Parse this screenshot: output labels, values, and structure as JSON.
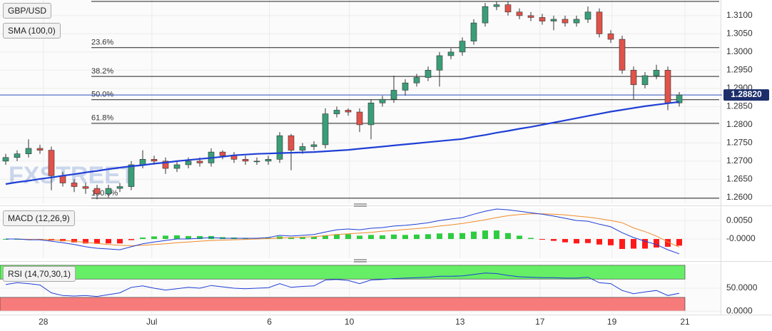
{
  "chart_data": [
    {
      "type": "candlestick",
      "title": "GBP/USD",
      "open": [
        1.27,
        1.271,
        1.272,
        1.2735,
        1.273,
        1.266,
        1.264,
        1.263,
        1.2625,
        1.261,
        1.2625,
        1.263,
        1.269,
        1.2705,
        1.27,
        1.268,
        1.269,
        1.27,
        1.2695,
        1.2725,
        1.2715,
        1.2705,
        1.27,
        1.27,
        1.2705,
        1.277,
        1.273,
        1.274,
        1.2745,
        1.283,
        1.284,
        1.2835,
        1.28,
        1.286,
        1.287,
        1.2895,
        1.2915,
        1.293,
        1.295,
        1.299,
        1.3,
        1.303,
        1.308,
        1.3125,
        1.313,
        1.311,
        1.31,
        1.3095,
        1.3085,
        1.309,
        1.308,
        1.309,
        1.311,
        1.305,
        1.3035,
        1.295,
        1.291,
        1.2935,
        1.295,
        1.286
      ],
      "high": [
        1.272,
        1.273,
        1.276,
        1.2745,
        1.274,
        1.267,
        1.265,
        1.264,
        1.2635,
        1.2635,
        1.264,
        1.27,
        1.273,
        1.2715,
        1.271,
        1.27,
        1.271,
        1.271,
        1.2735,
        1.273,
        1.2725,
        1.2715,
        1.271,
        1.2715,
        1.278,
        1.2775,
        1.275,
        1.2755,
        1.2845,
        1.285,
        1.2845,
        1.2845,
        1.287,
        1.288,
        1.2935,
        1.2925,
        1.294,
        1.296,
        1.3,
        1.301,
        1.304,
        1.309,
        1.3135,
        1.314,
        1.314,
        1.312,
        1.311,
        1.3105,
        1.31,
        1.31,
        1.31,
        1.3125,
        1.312,
        1.306,
        1.3045,
        1.296,
        1.2945,
        1.2965,
        1.296,
        1.289
      ],
      "low": [
        1.269,
        1.27,
        1.271,
        1.272,
        1.262,
        1.263,
        1.2615,
        1.261,
        1.2595,
        1.26,
        1.2615,
        1.262,
        1.268,
        1.269,
        1.2665,
        1.267,
        1.268,
        1.2685,
        1.2685,
        1.2705,
        1.2695,
        1.269,
        1.269,
        1.269,
        1.2695,
        1.2675,
        1.272,
        1.273,
        1.2735,
        1.282,
        1.2825,
        1.278,
        1.276,
        1.285,
        1.286,
        1.288,
        1.2905,
        1.292,
        1.2905,
        1.298,
        1.299,
        1.302,
        1.307,
        1.3115,
        1.31,
        1.309,
        1.3085,
        1.3075,
        1.306,
        1.307,
        1.307,
        1.308,
        1.304,
        1.3025,
        1.294,
        1.287,
        1.29,
        1.2925,
        1.284,
        1.285
      ],
      "close": [
        1.271,
        1.272,
        1.2735,
        1.273,
        1.266,
        1.264,
        1.263,
        1.2625,
        1.261,
        1.2625,
        1.263,
        1.269,
        1.2705,
        1.27,
        1.268,
        1.269,
        1.27,
        1.2695,
        1.2725,
        1.2715,
        1.2705,
        1.27,
        1.27,
        1.2705,
        1.277,
        1.273,
        1.274,
        1.2745,
        1.283,
        1.284,
        1.2835,
        1.28,
        1.286,
        1.287,
        1.2895,
        1.2915,
        1.293,
        1.295,
        1.299,
        1.3,
        1.303,
        1.308,
        1.3125,
        1.313,
        1.311,
        1.31,
        1.3095,
        1.3085,
        1.309,
        1.308,
        1.309,
        1.311,
        1.305,
        1.3035,
        1.295,
        1.291,
        1.2935,
        1.295,
        1.286,
        1.2882
      ],
      "up_color": "#3a9e78",
      "down_color": "#e0524a",
      "sma": {
        "name": "SMA (100,0)",
        "color": "#1f3fd6",
        "values": [
          1.2637,
          1.2642,
          1.2646,
          1.2651,
          1.2655,
          1.266,
          1.2664,
          1.2669,
          1.2673,
          1.2678,
          1.2682,
          1.2686,
          1.2689,
          1.2693,
          1.2696,
          1.27,
          1.2703,
          1.2706,
          1.2709,
          1.2712,
          1.2716,
          1.2718,
          1.272,
          1.2721,
          1.2722,
          1.2723,
          1.2724,
          1.2725,
          1.2727,
          1.2729,
          1.2731,
          1.2734,
          1.2737,
          1.274,
          1.2743,
          1.2746,
          1.2749,
          1.2752,
          1.2755,
          1.2758,
          1.2761,
          1.2767,
          1.2772,
          1.2778,
          1.2783,
          1.2789,
          1.2794,
          1.28,
          1.2806,
          1.2812,
          1.2818,
          1.2824,
          1.283,
          1.2836,
          1.2841,
          1.2846,
          1.2851,
          1.2855,
          1.2859,
          1.2863
        ]
      },
      "fib_levels": [
        {
          "label": "23.6%",
          "value": 1.3012
        },
        {
          "label": "38.2%",
          "value": 1.2933
        },
        {
          "label": "50.0%",
          "value": 1.2869
        },
        {
          "label": "61.8%",
          "value": 1.2804
        },
        {
          "label": "100.0%",
          "value": 1.2598
        }
      ],
      "fib_top": 1.3139,
      "last_price": 1.2882,
      "last_price_label": "1.28820",
      "watermark": "FXSTREET",
      "ylim": [
        1.2584,
        1.3143
      ],
      "yticks": [
        {
          "value": 1.26,
          "label": "1.2600"
        },
        {
          "value": 1.265,
          "label": "1.2650"
        },
        {
          "value": 1.27,
          "label": "1.2700"
        },
        {
          "value": 1.275,
          "label": "1.2750"
        },
        {
          "value": 1.28,
          "label": "1.2800"
        },
        {
          "value": 1.285,
          "label": "1.2850"
        },
        {
          "value": 1.29,
          "label": "1.2900"
        },
        {
          "value": 1.295,
          "label": "1.2950"
        },
        {
          "value": 1.3,
          "label": "1.3000"
        },
        {
          "value": 1.305,
          "label": "1.3050"
        },
        {
          "value": 1.31,
          "label": "1.3100"
        }
      ],
      "xlim": [
        -0.5,
        62.5
      ],
      "xticks": [
        {
          "value": 3.3,
          "label": "28"
        },
        {
          "value": 12.8,
          "label": "Jul"
        },
        {
          "value": 23.1,
          "label": "6"
        },
        {
          "value": 30.1,
          "label": "10"
        },
        {
          "value": 39.8,
          "label": "13"
        },
        {
          "value": 46.8,
          "label": "17"
        },
        {
          "value": 53.1,
          "label": "19"
        },
        {
          "value": 59.5,
          "label": "21"
        }
      ]
    },
    {
      "type": "macd",
      "title": "MACD (12,26,9)",
      "macd": {
        "color": "#1f3fd6",
        "values": [
          0,
          0,
          -0.0002,
          -0.0002,
          -0.0006,
          -0.001,
          -0.0015,
          -0.0021,
          -0.0025,
          -0.0027,
          -0.0029,
          -0.0021,
          -0.0013,
          -0.0008,
          -0.0004,
          0,
          0,
          0.0002,
          0.0004,
          0.0002,
          0.0002,
          0.0002,
          0.0002,
          0.0004,
          0.001,
          0.0008,
          0.001,
          0.0012,
          0.0019,
          0.0025,
          0.0027,
          0.0025,
          0.0029,
          0.0031,
          0.0035,
          0.0037,
          0.004,
          0.0044,
          0.005,
          0.0054,
          0.0058,
          0.0067,
          0.0075,
          0.0081,
          0.0079,
          0.0075,
          0.0071,
          0.0067,
          0.0062,
          0.0056,
          0.005,
          0.0048,
          0.004,
          0.0033,
          0.0017,
          0.0004,
          -0.0006,
          -0.0015,
          -0.0029,
          -0.004
        ]
      },
      "signal": {
        "color": "#f08c28",
        "values": [
          0,
          0,
          -0.0001,
          -0.0001,
          -0.0002,
          -0.0004,
          -0.0006,
          -0.0009,
          -0.0012,
          -0.0015,
          -0.0017,
          -0.0018,
          -0.0017,
          -0.0015,
          -0.0013,
          -0.001,
          -0.0008,
          -0.0006,
          -0.0004,
          -0.0003,
          -0.0002,
          -0.0001,
          0,
          0.0001,
          0.0003,
          0.0004,
          0.0005,
          0.0006,
          0.0009,
          0.0012,
          0.0014,
          0.0016,
          0.0018,
          0.0021,
          0.0023,
          0.0026,
          0.0028,
          0.0031,
          0.0035,
          0.0038,
          0.0042,
          0.0047,
          0.0052,
          0.0058,
          0.0063,
          0.0066,
          0.0068,
          0.0068,
          0.0067,
          0.0065,
          0.0062,
          0.0059,
          0.0055,
          0.005,
          0.0044,
          0.003,
          0.002,
          0.0008,
          -0.0008,
          -0.0022
        ]
      },
      "histogram": {
        "up_color": "#2ecc40",
        "down_color": "#ff1a1a",
        "values": [
          0,
          0,
          -0.0001,
          -0.0001,
          -0.0004,
          -0.0006,
          -0.0009,
          -0.0012,
          -0.0013,
          -0.0012,
          -0.0012,
          -0.0003,
          0.0004,
          0.0007,
          0.0009,
          0.001,
          0.0008,
          0.0008,
          0.0008,
          0.0005,
          0.0004,
          0.0003,
          0.0002,
          0.0003,
          0.0007,
          0.0004,
          0.0005,
          0.0006,
          0.001,
          0.0013,
          0.0013,
          0.0009,
          0.0011,
          0.001,
          0.0012,
          0.0011,
          0.0012,
          0.0013,
          0.0015,
          0.0016,
          0.0016,
          0.002,
          0.0023,
          0.0023,
          0.0016,
          0.0009,
          0.0003,
          -0.0001,
          -0.0005,
          -0.0009,
          -0.0012,
          -0.0011,
          -0.0015,
          -0.0017,
          -0.0027,
          -0.0026,
          -0.0026,
          -0.0023,
          -0.0021,
          -0.0018
        ]
      },
      "ylim": [
        -0.0052,
        0.0083
      ],
      "yticks": [
        {
          "value": 0.005,
          "label": "0.0050"
        },
        {
          "value": 0,
          "label": "-0.0000"
        }
      ]
    },
    {
      "type": "rsi",
      "title": "RSI (14,70,30,1)",
      "color": "#1f3fd6",
      "values": [
        58,
        62,
        60,
        57,
        40,
        34,
        33,
        34,
        32,
        36,
        40,
        52,
        55,
        50,
        46,
        49,
        52,
        50,
        56,
        53,
        50,
        49,
        50,
        51,
        60,
        52,
        54,
        55,
        68,
        69,
        67,
        60,
        68,
        69,
        71,
        72,
        73,
        74,
        76,
        76,
        77,
        80,
        83,
        82,
        78,
        75,
        74,
        73,
        73,
        72,
        72,
        74,
        62,
        60,
        45,
        38,
        42,
        45,
        34,
        39
      ],
      "zones": [
        {
          "from": 70,
          "to": 100,
          "color": "#66ee66"
        },
        {
          "from": 0,
          "to": 30,
          "color": "#f77b7b"
        }
      ],
      "ylim": [
        -6,
        103
      ],
      "yticks": [
        {
          "value": 50,
          "label": "50.0000"
        },
        {
          "value": 0,
          "label": "0.0000"
        }
      ]
    }
  ]
}
